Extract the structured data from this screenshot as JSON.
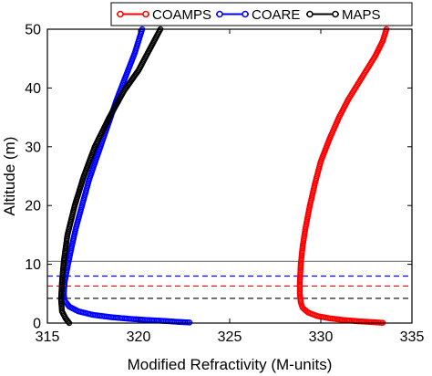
{
  "chart_data": {
    "type": "line",
    "title": "",
    "xlabel": "Modified Refractivity (M-units)",
    "ylabel": "Altitude (m)",
    "xlim": [
      315,
      335
    ],
    "ylim": [
      0,
      50
    ],
    "xticks": [
      315,
      320,
      325,
      330,
      335
    ],
    "yticks": [
      0,
      10,
      20,
      30,
      40,
      50
    ],
    "grid": false,
    "legend": {
      "position": "top",
      "orientation": "horizontal"
    },
    "series": [
      {
        "name": "COAMPS",
        "color": "#ff0000",
        "x": [
          333.6,
          333.4,
          333.0,
          332.5,
          332.0,
          331.5,
          331.0,
          330.5,
          330.0,
          329.7,
          329.4,
          329.15,
          329.0,
          328.9,
          328.85,
          328.85,
          328.9,
          329.0,
          329.3,
          329.8,
          330.5,
          331.3,
          332.1,
          332.9,
          333.4
        ],
        "y": [
          50.0,
          48.0,
          45.5,
          43.0,
          40.5,
          38.0,
          35.0,
          31.5,
          27.5,
          24.0,
          20.0,
          16.0,
          13.0,
          10.0,
          7.0,
          5.0,
          3.5,
          2.6,
          1.8,
          1.2,
          0.8,
          0.5,
          0.3,
          0.15,
          0.05
        ]
      },
      {
        "name": "COARE",
        "color": "#0000ff",
        "x": [
          320.2,
          319.8,
          319.3,
          318.8,
          318.3,
          317.8,
          317.3,
          316.9,
          316.55,
          316.3,
          316.1,
          315.95,
          315.9,
          315.95,
          316.2,
          316.7,
          317.5,
          318.5,
          319.6,
          320.6,
          321.5,
          322.2,
          322.8
        ],
        "y": [
          50.0,
          46.0,
          42.0,
          38.0,
          33.5,
          29.0,
          24.5,
          20.0,
          16.0,
          12.5,
          9.5,
          7.0,
          5.0,
          3.8,
          2.8,
          2.0,
          1.4,
          1.0,
          0.7,
          0.5,
          0.35,
          0.2,
          0.1
        ]
      },
      {
        "name": "MAPS",
        "color": "#000000",
        "x": [
          321.2,
          320.6,
          320.0,
          319.2,
          318.4,
          317.6,
          317.0,
          316.5,
          316.1,
          315.9,
          315.8,
          315.75,
          315.8,
          316.0,
          316.2
        ],
        "y": [
          50.0,
          46.5,
          43.0,
          39.5,
          35.0,
          30.0,
          25.0,
          20.0,
          15.0,
          10.5,
          7.0,
          4.0,
          2.0,
          0.8,
          0.0
        ]
      }
    ],
    "reference_lines": [
      {
        "y": 10.5,
        "color": "#808080",
        "style": "solid"
      },
      {
        "y": 8.0,
        "color": "#0000ff",
        "style": "dashed"
      },
      {
        "y": 6.3,
        "color": "#ff0000",
        "style": "dashed"
      },
      {
        "y": 4.2,
        "color": "#000000",
        "style": "dashed"
      }
    ]
  }
}
